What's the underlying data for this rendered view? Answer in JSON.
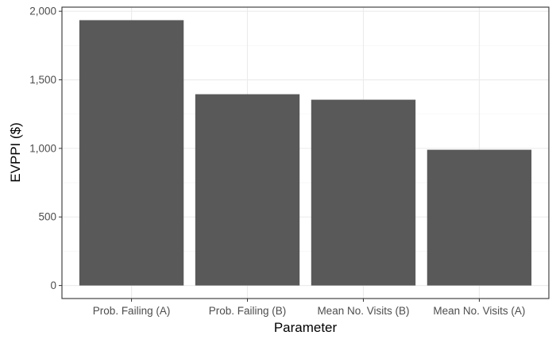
{
  "chart_data": {
    "type": "bar",
    "title": "",
    "xlabel": "Parameter",
    "ylabel": "EVPPI ($)",
    "categories": [
      "Prob. Failing (A)",
      "Prob. Failing (B)",
      "Mean No. Visits (B)",
      "Mean No. Visits (A)"
    ],
    "values": [
      1935,
      1395,
      1355,
      990
    ],
    "ylim": [
      -95,
      2030
    ],
    "yticks": [
      0,
      500,
      1000,
      1500,
      2000
    ],
    "ytick_labels": [
      "0",
      "500",
      "1,000",
      "1,500",
      "2,000"
    ],
    "grid": true,
    "legend": "none",
    "bar_color": "#595959"
  }
}
